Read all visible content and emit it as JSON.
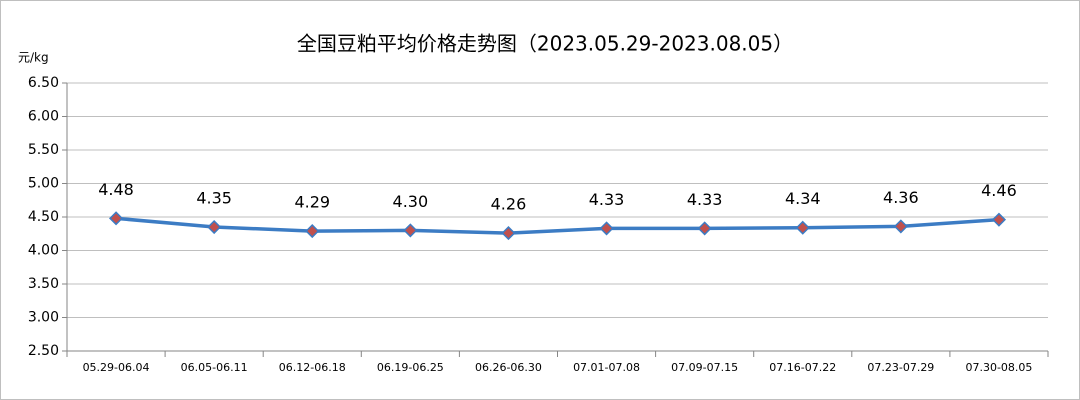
{
  "chart_data": {
    "type": "line",
    "title": "全国豆粕平均价格走势图（2023.05.29-2023.08.05）",
    "y_label": "元/kg",
    "categories": [
      "05.29-06.04",
      "06.05-06.11",
      "06.12-06.18",
      "06.19-06.25",
      "06.26-06.30",
      "07.01-07.08",
      "07.09-07.15",
      "07.16-07.22",
      "07.23-07.29",
      "07.30-08.05"
    ],
    "series": [
      {
        "name": "全国豆粕平均价格",
        "color": "#3c7cc4",
        "marker_color": "#c0504d",
        "values": [
          4.48,
          4.35,
          4.29,
          4.3,
          4.26,
          4.33,
          4.33,
          4.34,
          4.36,
          4.46
        ],
        "value_labels": [
          "4.48",
          "4.35",
          "4.29",
          "4.30",
          "4.26",
          "4.33",
          "4.33",
          "4.34",
          "4.36",
          "4.46"
        ]
      }
    ],
    "ylim": [
      2.5,
      6.5
    ],
    "yticks": [
      {
        "value": 2.5,
        "label": "2.50"
      },
      {
        "value": 3,
        "label": "3.00"
      },
      {
        "value": 3.5,
        "label": "3.50"
      },
      {
        "value": 4,
        "label": "4.00"
      },
      {
        "value": 4.5,
        "label": "4.50"
      },
      {
        "value": 5,
        "label": "5.00"
      },
      {
        "value": 5.5,
        "label": "5.50"
      },
      {
        "value": 6,
        "label": "6.00"
      },
      {
        "value": 6.5,
        "label": "6.50"
      }
    ],
    "grid": true
  }
}
